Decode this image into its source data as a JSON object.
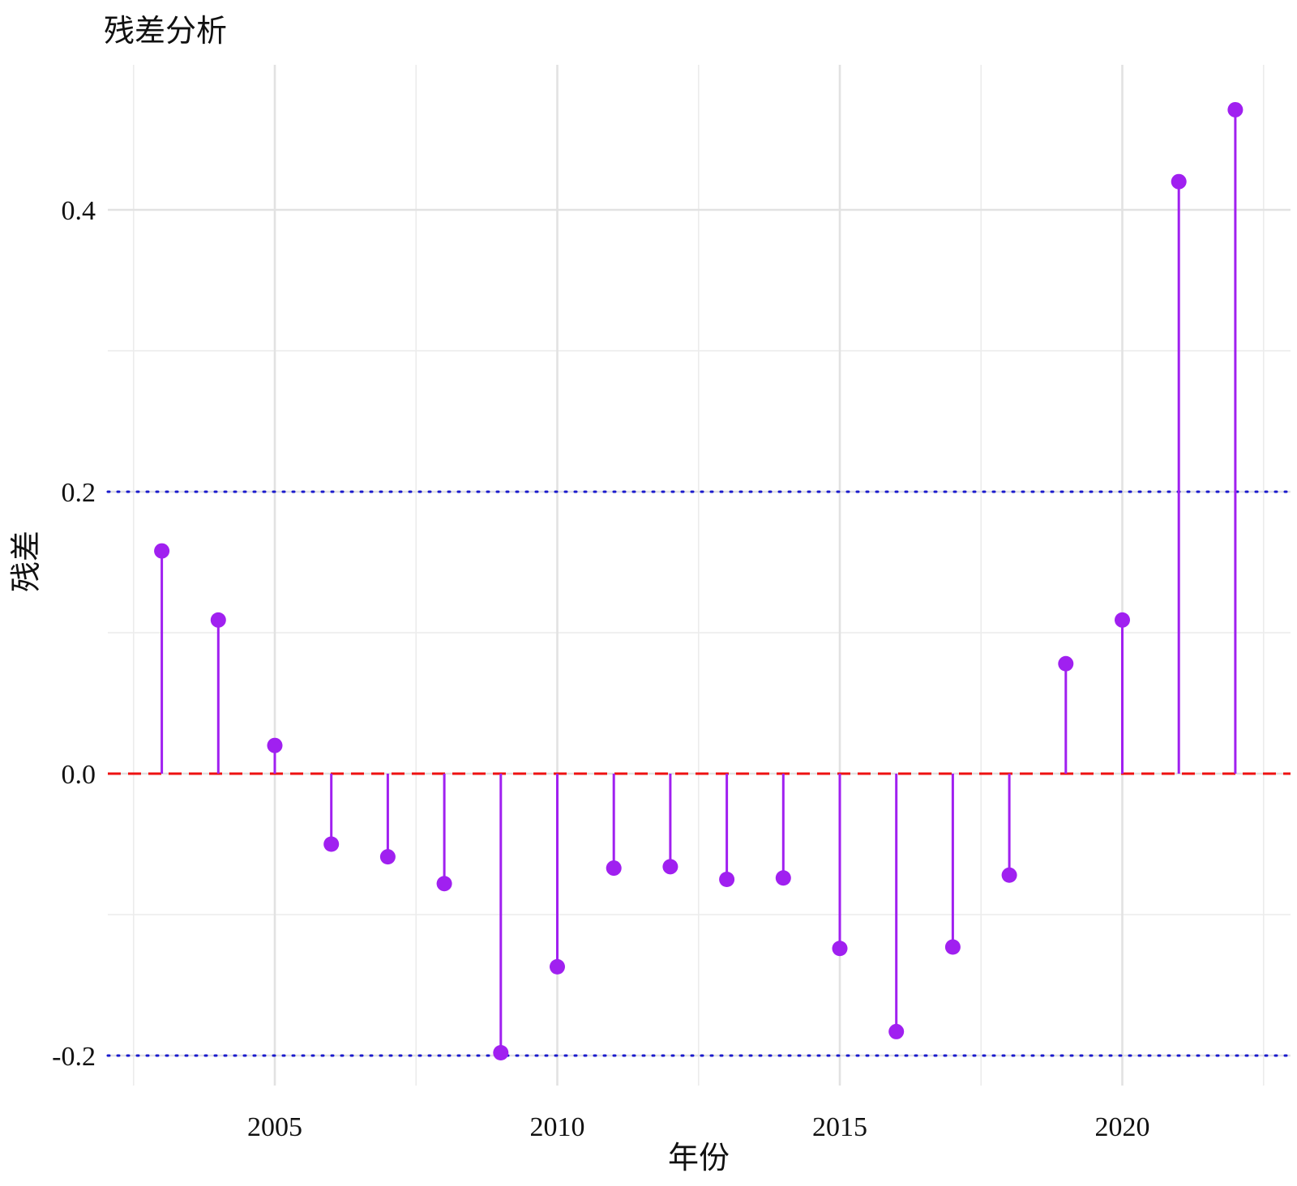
{
  "chart_data": {
    "type": "lollipop",
    "title": "残差分析",
    "xlabel": "年份",
    "ylabel": "残差",
    "x": [
      2003,
      2004,
      2005,
      2006,
      2007,
      2008,
      2009,
      2010,
      2011,
      2012,
      2013,
      2014,
      2015,
      2016,
      2017,
      2018,
      2019,
      2020,
      2021,
      2022
    ],
    "values": [
      0.158,
      0.109,
      0.02,
      -0.05,
      -0.059,
      -0.078,
      -0.198,
      -0.137,
      -0.067,
      -0.066,
      -0.075,
      -0.074,
      -0.124,
      -0.183,
      -0.123,
      -0.072,
      0.078,
      0.109,
      0.42,
      0.471
    ],
    "x_ticks": [
      2005,
      2010,
      2015,
      2020
    ],
    "y_ticks": [
      "-0.2",
      "0.0",
      "0.2",
      "0.4"
    ],
    "xlim": [
      2002.5,
      2022.5
    ],
    "ylim": [
      -0.23,
      0.5
    ],
    "reference_lines": [
      {
        "y": 0.0,
        "style": "dashed",
        "color": "#ee1111"
      },
      {
        "y": 0.2,
        "style": "dotted",
        "color": "#1a1acc"
      },
      {
        "y": -0.2,
        "style": "dotted",
        "color": "#1a1acc"
      }
    ],
    "point_color": "#a020f0",
    "grid": true,
    "legend": "none"
  }
}
